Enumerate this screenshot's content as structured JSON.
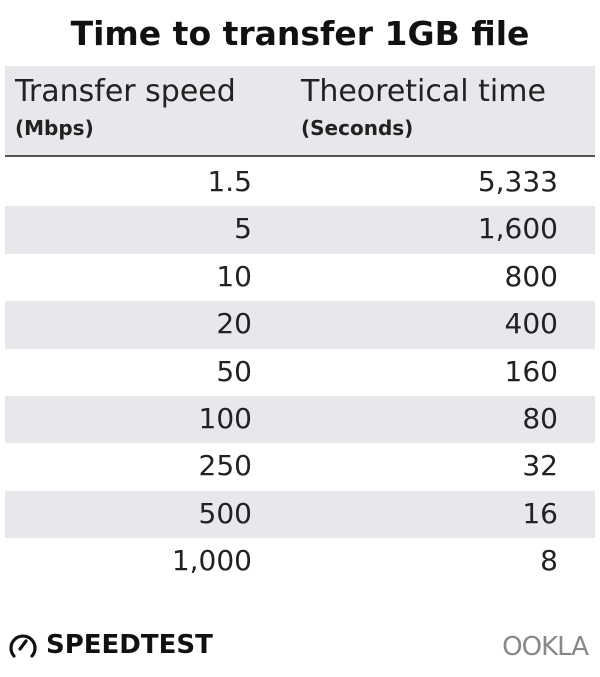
{
  "title": "Time to transfer 1GB file",
  "chart_data": {
    "type": "table",
    "title": "Time to transfer 1GB file",
    "columns": [
      {
        "label": "Transfer speed",
        "unit": "(Mbps)"
      },
      {
        "label": "Theoretical time",
        "unit": "(Seconds)"
      }
    ],
    "rows": [
      [
        "1.5",
        "5,333"
      ],
      [
        "5",
        "1,600"
      ],
      [
        "10",
        "800"
      ],
      [
        "20",
        "400"
      ],
      [
        "50",
        "160"
      ],
      [
        "100",
        "80"
      ],
      [
        "250",
        "32"
      ],
      [
        "500",
        "16"
      ],
      [
        "1,000",
        "8"
      ]
    ],
    "row_stripe_color": "#e8e8ec"
  },
  "branding": {
    "left": "SPEEDTEST",
    "right": "OOKLA"
  }
}
